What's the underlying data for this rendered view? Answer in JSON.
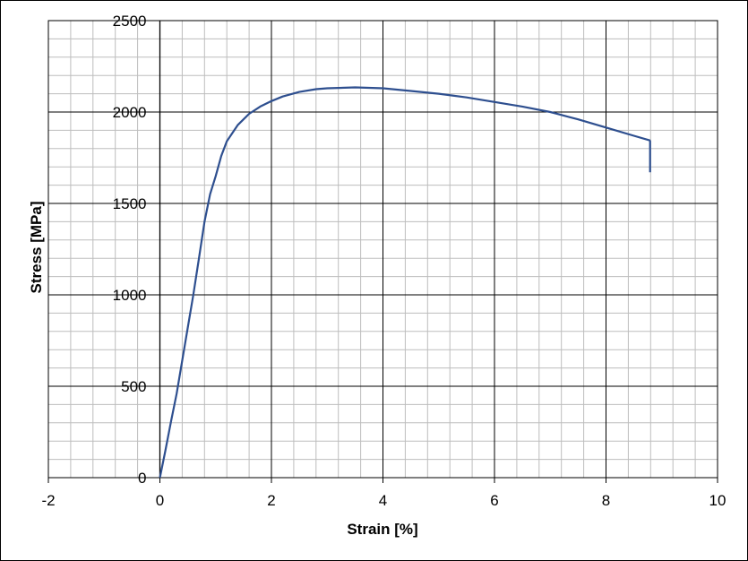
{
  "chart_data": {
    "type": "line",
    "xlabel": "Strain [%]",
    "ylabel": "Stress [MPa]",
    "xlim": [
      -2,
      10
    ],
    "ylim": [
      0,
      2500
    ],
    "x_ticks": [
      -2,
      0,
      2,
      4,
      6,
      8,
      10
    ],
    "y_ticks": [
      0,
      500,
      1000,
      1500,
      2000,
      2500
    ],
    "x_minor_step": 0.4,
    "y_minor_step": 100,
    "grid": true,
    "legend": "none",
    "colors": {
      "series": "#2e4f8f",
      "major_grid": "#000000",
      "minor_grid": "#bdbdbd"
    },
    "series": [
      {
        "x": [
          0.0,
          0.1,
          0.2,
          0.3,
          0.4,
          0.5,
          0.6,
          0.7,
          0.8,
          0.9,
          1.0,
          1.1,
          1.2,
          1.4,
          1.6,
          1.8,
          2.0,
          2.2,
          2.5,
          2.8,
          3.0,
          3.5,
          4.0,
          4.5,
          5.0,
          5.5,
          6.0,
          6.5,
          7.0,
          7.5,
          8.0,
          8.5,
          8.78,
          8.79,
          8.79
        ],
        "y": [
          0,
          150,
          310,
          460,
          640,
          820,
          1000,
          1200,
          1400,
          1550,
          1650,
          1760,
          1840,
          1930,
          1990,
          2030,
          2060,
          2085,
          2110,
          2125,
          2130,
          2135,
          2130,
          2115,
          2100,
          2080,
          2055,
          2030,
          2000,
          1960,
          1915,
          1870,
          1845,
          1840,
          1670
        ]
      }
    ]
  }
}
